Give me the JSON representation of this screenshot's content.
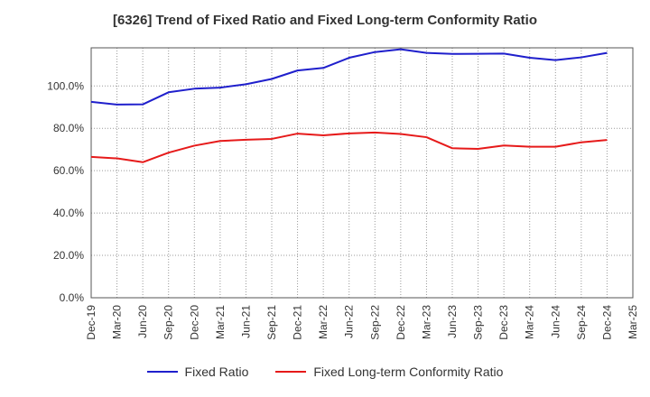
{
  "chart_data": {
    "type": "line",
    "title": "[6326]  Trend of Fixed Ratio and Fixed Long-term Conformity Ratio",
    "xlabel": "",
    "ylabel": "",
    "x_ticks": [
      "Dec-19",
      "Mar-20",
      "Jun-20",
      "Sep-20",
      "Dec-20",
      "Mar-21",
      "Jun-21",
      "Sep-21",
      "Dec-21",
      "Mar-22",
      "Jun-22",
      "Sep-22",
      "Dec-22",
      "Mar-23",
      "Jun-23",
      "Sep-23",
      "Dec-23",
      "Mar-24",
      "Jun-24",
      "Sep-24",
      "Dec-24",
      "Mar-25"
    ],
    "x": [
      "Dec-19",
      "Mar-20",
      "Jun-20",
      "Sep-20",
      "Dec-20",
      "Mar-21",
      "Jun-21",
      "Sep-21",
      "Dec-21",
      "Mar-22",
      "Jun-22",
      "Sep-22",
      "Dec-22",
      "Mar-23",
      "Jun-23",
      "Sep-23",
      "Dec-23",
      "Mar-24",
      "Jun-24",
      "Sep-24",
      "Dec-24"
    ],
    "y_ticks": [
      "0.0%",
      "20.0%",
      "40.0%",
      "60.0%",
      "80.0%",
      "100.0%"
    ],
    "ylim": [
      0,
      118
    ],
    "grid": true,
    "legend_position": "bottom",
    "series": [
      {
        "name": "Fixed Ratio",
        "color": "#1f1fcc",
        "values": [
          92.5,
          91.2,
          91.3,
          97.0,
          98.7,
          99.2,
          100.8,
          103.3,
          107.3,
          108.5,
          113.3,
          116.0,
          117.3,
          115.6,
          115.1,
          115.2,
          115.3,
          113.3,
          112.2,
          113.5,
          115.6
        ]
      },
      {
        "name": "Fixed Long-term Conformity Ratio",
        "color": "#e61a1a",
        "values": [
          66.5,
          65.8,
          64.0,
          68.5,
          71.8,
          74.0,
          74.6,
          75.0,
          77.5,
          76.7,
          77.6,
          78.0,
          77.3,
          75.8,
          70.6,
          70.3,
          71.9,
          71.3,
          71.3,
          73.4,
          74.5
        ]
      }
    ]
  }
}
